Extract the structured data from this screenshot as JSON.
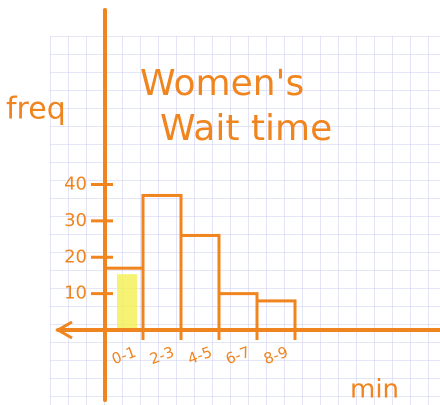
{
  "chart_data": {
    "type": "bar",
    "title": [
      "Women's",
      "Wait time"
    ],
    "y_label": "freq",
    "x_label": "min",
    "categories": [
      "0-1",
      "2-3",
      "4-5",
      "6-7",
      "8-9"
    ],
    "values": [
      17,
      37,
      26,
      10,
      8
    ],
    "color": "#f0841e",
    "highlight_color": "#f4f05a",
    "ylim": [
      0,
      88
    ],
    "yticks": [
      10,
      20,
      30,
      40
    ]
  }
}
